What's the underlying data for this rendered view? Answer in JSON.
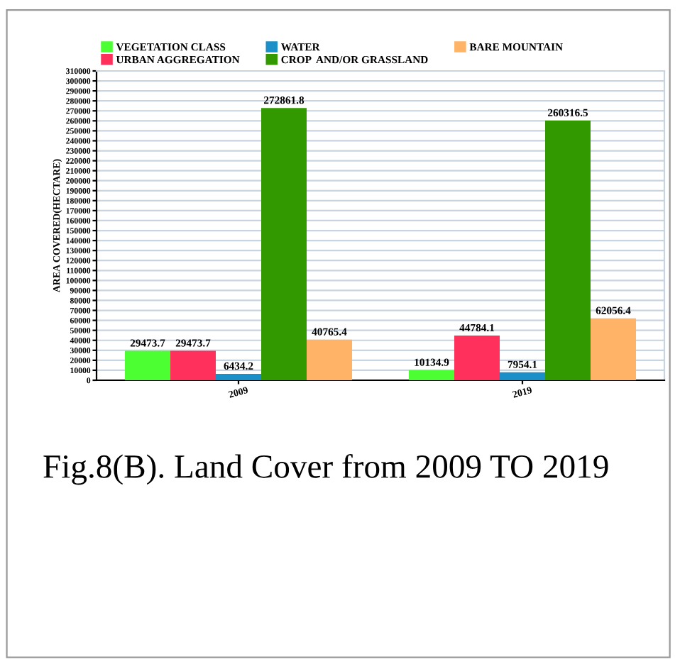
{
  "chart_data": {
    "type": "bar",
    "categories": [
      "2009",
      "2019"
    ],
    "ylabel": "AREA COVERED(HECTARE)",
    "series": [
      {
        "name": "VEGETATION CLASS",
        "color": "#4cff33",
        "values": [
          29473.7,
          10134.9
        ]
      },
      {
        "name": "URBAN AGGREGATION",
        "color": "#ff305c",
        "values": [
          29473.7,
          44784.1
        ]
      },
      {
        "name": "WATER",
        "color": "#1a8fc8",
        "values": [
          6434.2,
          7954.1
        ]
      },
      {
        "name": "CROP  AND/OR GRASSLAND",
        "color": "#339900",
        "values": [
          272861.8,
          260316.5
        ]
      },
      {
        "name": "BARE MOUNTAIN",
        "color": "#ffb366",
        "values": [
          40765.4,
          62056.4
        ]
      }
    ],
    "ylim": [
      0,
      310000
    ],
    "yticks": [
      0,
      10000,
      20000,
      30000,
      40000,
      50000,
      60000,
      70000,
      80000,
      90000,
      100000,
      110000,
      120000,
      130000,
      140000,
      150000,
      160000,
      170000,
      180000,
      190000,
      200000,
      210000,
      220000,
      230000,
      240000,
      250000,
      260000,
      270000,
      280000,
      290000,
      300000,
      310000
    ],
    "grid": "y",
    "legend": "top",
    "data_labels": true,
    "annotations": [
      "Fig.8(B). Land Cover from 2009 TO 2019"
    ]
  }
}
